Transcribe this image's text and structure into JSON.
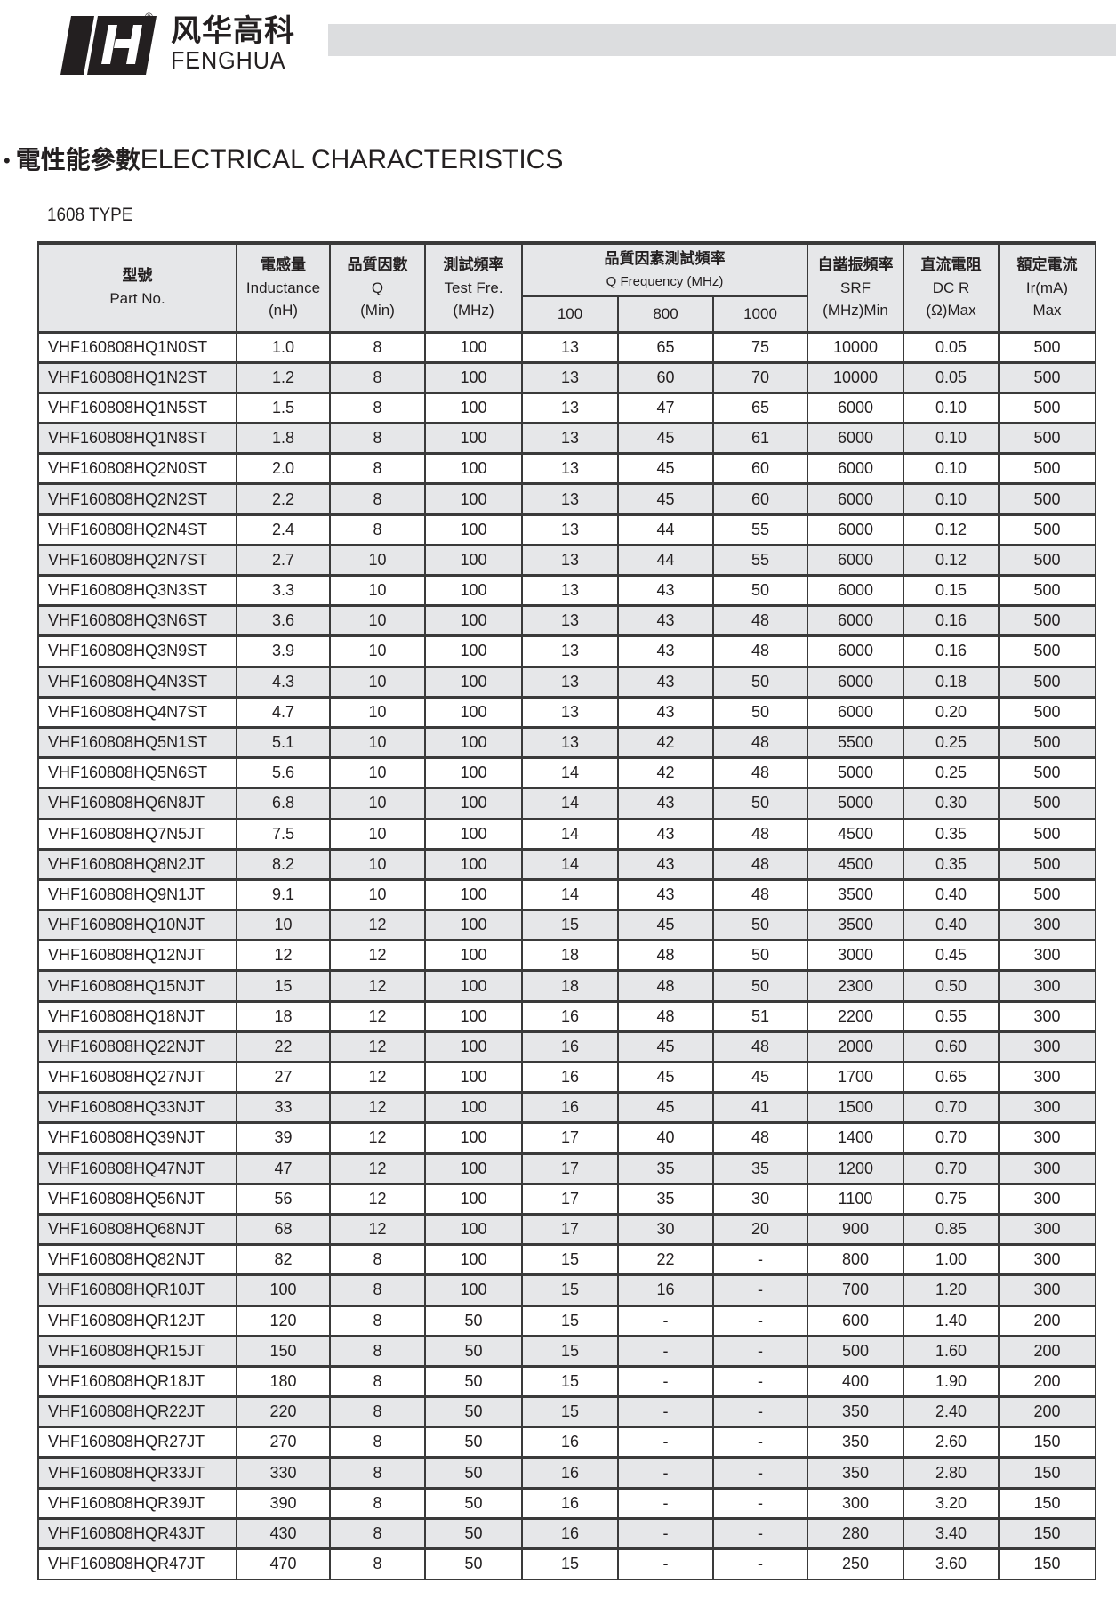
{
  "brand": {
    "name_cn": "风华高科",
    "name_en": "FENGHUA",
    "registered": "®"
  },
  "heading": {
    "bullet": "•",
    "title_cn": "電性能參數",
    "title_en": "ELECTRICAL CHARACTERISTICS"
  },
  "type_label": "1608 TYPE",
  "colors": {
    "header_bg": "#e6e7e9",
    "alt_row": "#e6e7e9",
    "border": "#3a3a3a",
    "top_bar": "#dcdddf"
  },
  "table": {
    "headers": {
      "part": {
        "cn": "型號",
        "en": "Part No."
      },
      "inductance": {
        "cn": "電感量",
        "en": "Inductance",
        "unit": "(nH)"
      },
      "q": {
        "cn": "品質因數",
        "en": "Q",
        "unit": "(Min)"
      },
      "test_freq": {
        "cn": "測試頻率",
        "en": "Test Fre.",
        "unit": "(MHz)"
      },
      "q_freq": {
        "cn": "品質因素測試頻率",
        "en": "Q Frequency (MHz)",
        "sub": [
          "100",
          "800",
          "1000"
        ]
      },
      "srf": {
        "cn": "自諧振頻率",
        "en": "SRF",
        "unit": "(MHz)Min"
      },
      "dcr": {
        "cn": "直流電阻",
        "en": "DC R",
        "unit": "(Ω)Max"
      },
      "ir": {
        "cn": "額定電流",
        "en": "Ir(mA)",
        "unit": "Max"
      }
    },
    "rows": [
      [
        "VHF160808HQ1N0ST",
        "1.0",
        "8",
        "100",
        "13",
        "65",
        "75",
        "10000",
        "0.05",
        "500"
      ],
      [
        "VHF160808HQ1N2ST",
        "1.2",
        "8",
        "100",
        "13",
        "60",
        "70",
        "10000",
        "0.05",
        "500"
      ],
      [
        "VHF160808HQ1N5ST",
        "1.5",
        "8",
        "100",
        "13",
        "47",
        "65",
        "6000",
        "0.10",
        "500"
      ],
      [
        "VHF160808HQ1N8ST",
        "1.8",
        "8",
        "100",
        "13",
        "45",
        "61",
        "6000",
        "0.10",
        "500"
      ],
      [
        "VHF160808HQ2N0ST",
        "2.0",
        "8",
        "100",
        "13",
        "45",
        "60",
        "6000",
        "0.10",
        "500"
      ],
      [
        "VHF160808HQ2N2ST",
        "2.2",
        "8",
        "100",
        "13",
        "45",
        "60",
        "6000",
        "0.10",
        "500"
      ],
      [
        "VHF160808HQ2N4ST",
        "2.4",
        "8",
        "100",
        "13",
        "44",
        "55",
        "6000",
        "0.12",
        "500"
      ],
      [
        "VHF160808HQ2N7ST",
        "2.7",
        "10",
        "100",
        "13",
        "44",
        "55",
        "6000",
        "0.12",
        "500"
      ],
      [
        "VHF160808HQ3N3ST",
        "3.3",
        "10",
        "100",
        "13",
        "43",
        "50",
        "6000",
        "0.15",
        "500"
      ],
      [
        "VHF160808HQ3N6ST",
        "3.6",
        "10",
        "100",
        "13",
        "43",
        "48",
        "6000",
        "0.16",
        "500"
      ],
      [
        "VHF160808HQ3N9ST",
        "3.9",
        "10",
        "100",
        "13",
        "43",
        "48",
        "6000",
        "0.16",
        "500"
      ],
      [
        "VHF160808HQ4N3ST",
        "4.3",
        "10",
        "100",
        "13",
        "43",
        "50",
        "6000",
        "0.18",
        "500"
      ],
      [
        "VHF160808HQ4N7ST",
        "4.7",
        "10",
        "100",
        "13",
        "43",
        "50",
        "6000",
        "0.20",
        "500"
      ],
      [
        "VHF160808HQ5N1ST",
        "5.1",
        "10",
        "100",
        "13",
        "42",
        "48",
        "5500",
        "0.25",
        "500"
      ],
      [
        "VHF160808HQ5N6ST",
        "5.6",
        "10",
        "100",
        "14",
        "42",
        "48",
        "5000",
        "0.25",
        "500"
      ],
      [
        "VHF160808HQ6N8JT",
        "6.8",
        "10",
        "100",
        "14",
        "43",
        "50",
        "5000",
        "0.30",
        "500"
      ],
      [
        "VHF160808HQ7N5JT",
        "7.5",
        "10",
        "100",
        "14",
        "43",
        "48",
        "4500",
        "0.35",
        "500"
      ],
      [
        "VHF160808HQ8N2JT",
        "8.2",
        "10",
        "100",
        "14",
        "43",
        "48",
        "4500",
        "0.35",
        "500"
      ],
      [
        "VHF160808HQ9N1JT",
        "9.1",
        "10",
        "100",
        "14",
        "43",
        "48",
        "3500",
        "0.40",
        "500"
      ],
      [
        "VHF160808HQ10NJT",
        "10",
        "12",
        "100",
        "15",
        "45",
        "50",
        "3500",
        "0.40",
        "300"
      ],
      [
        "VHF160808HQ12NJT",
        "12",
        "12",
        "100",
        "18",
        "48",
        "50",
        "3000",
        "0.45",
        "300"
      ],
      [
        "VHF160808HQ15NJT",
        "15",
        "12",
        "100",
        "18",
        "48",
        "50",
        "2300",
        "0.50",
        "300"
      ],
      [
        "VHF160808HQ18NJT",
        "18",
        "12",
        "100",
        "16",
        "48",
        "51",
        "2200",
        "0.55",
        "300"
      ],
      [
        "VHF160808HQ22NJT",
        "22",
        "12",
        "100",
        "16",
        "45",
        "48",
        "2000",
        "0.60",
        "300"
      ],
      [
        "VHF160808HQ27NJT",
        "27",
        "12",
        "100",
        "16",
        "45",
        "45",
        "1700",
        "0.65",
        "300"
      ],
      [
        "VHF160808HQ33NJT",
        "33",
        "12",
        "100",
        "16",
        "45",
        "41",
        "1500",
        "0.70",
        "300"
      ],
      [
        "VHF160808HQ39NJT",
        "39",
        "12",
        "100",
        "17",
        "40",
        "48",
        "1400",
        "0.70",
        "300"
      ],
      [
        "VHF160808HQ47NJT",
        "47",
        "12",
        "100",
        "17",
        "35",
        "35",
        "1200",
        "0.70",
        "300"
      ],
      [
        "VHF160808HQ56NJT",
        "56",
        "12",
        "100",
        "17",
        "35",
        "30",
        "1100",
        "0.75",
        "300"
      ],
      [
        "VHF160808HQ68NJT",
        "68",
        "12",
        "100",
        "17",
        "30",
        "20",
        "900",
        "0.85",
        "300"
      ],
      [
        "VHF160808HQ82NJT",
        "82",
        "8",
        "100",
        "15",
        "22",
        "-",
        "800",
        "1.00",
        "300"
      ],
      [
        "VHF160808HQR10JT",
        "100",
        "8",
        "100",
        "15",
        "16",
        "-",
        "700",
        "1.20",
        "300"
      ],
      [
        "VHF160808HQR12JT",
        "120",
        "8",
        "50",
        "15",
        "-",
        "-",
        "600",
        "1.40",
        "200"
      ],
      [
        "VHF160808HQR15JT",
        "150",
        "8",
        "50",
        "15",
        "-",
        "-",
        "500",
        "1.60",
        "200"
      ],
      [
        "VHF160808HQR18JT",
        "180",
        "8",
        "50",
        "15",
        "-",
        "-",
        "400",
        "1.90",
        "200"
      ],
      [
        "VHF160808HQR22JT",
        "220",
        "8",
        "50",
        "15",
        "-",
        "-",
        "350",
        "2.40",
        "200"
      ],
      [
        "VHF160808HQR27JT",
        "270",
        "8",
        "50",
        "16",
        "-",
        "-",
        "350",
        "2.60",
        "150"
      ],
      [
        "VHF160808HQR33JT",
        "330",
        "8",
        "50",
        "16",
        "-",
        "-",
        "350",
        "2.80",
        "150"
      ],
      [
        "VHF160808HQR39JT",
        "390",
        "8",
        "50",
        "16",
        "-",
        "-",
        "300",
        "3.20",
        "150"
      ],
      [
        "VHF160808HQR43JT",
        "430",
        "8",
        "50",
        "16",
        "-",
        "-",
        "280",
        "3.40",
        "150"
      ],
      [
        "VHF160808HQR47JT",
        "470",
        "8",
        "50",
        "15",
        "-",
        "-",
        "250",
        "3.60",
        "150"
      ]
    ]
  }
}
